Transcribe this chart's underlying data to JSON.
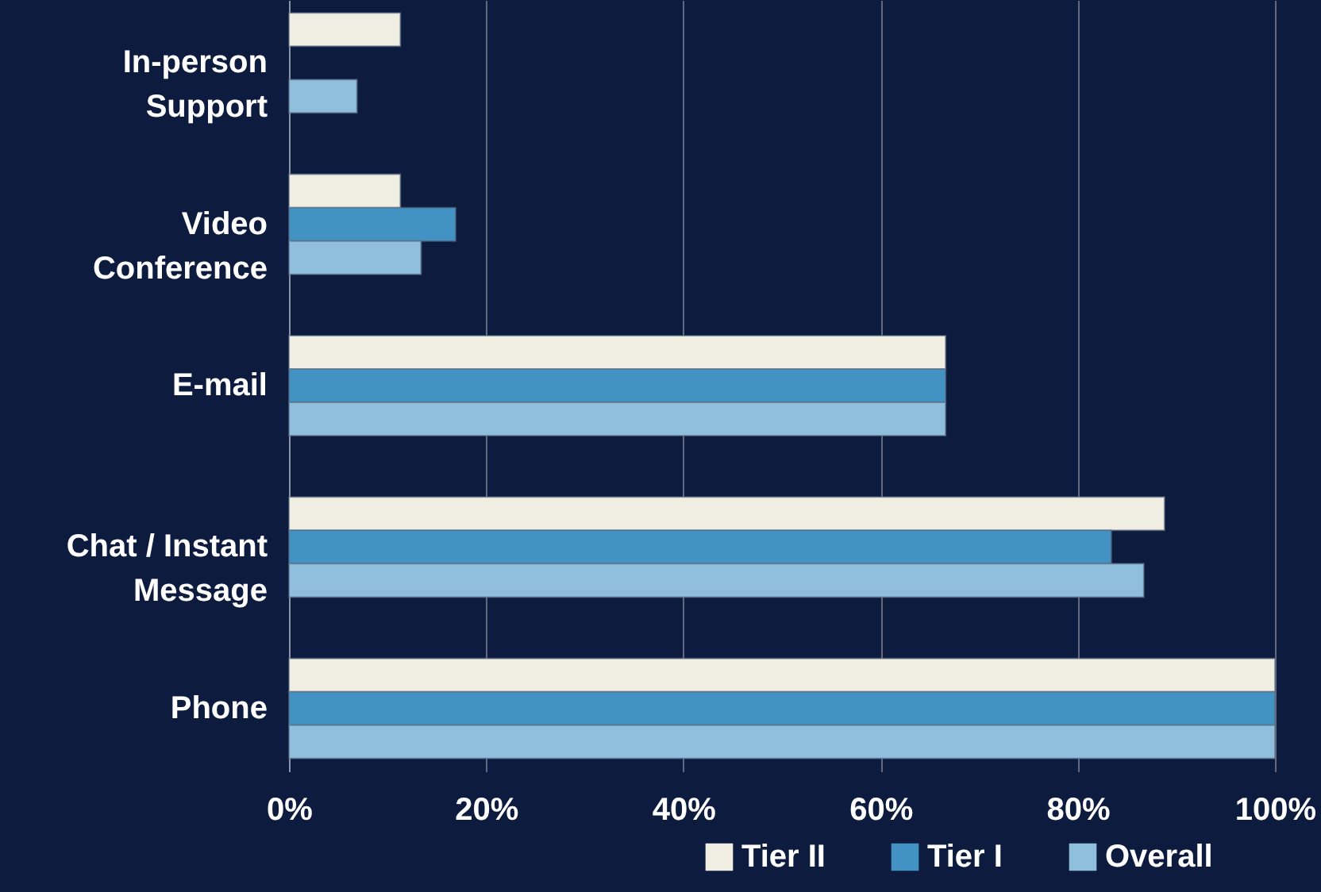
{
  "chart_data": {
    "type": "bar",
    "orientation": "horizontal",
    "categories": [
      "In-person Support",
      "Video Conference",
      "E-mail",
      "Chat / Instant Message",
      "Phone"
    ],
    "series": [
      {
        "name": "Tier II",
        "color": "#f0eee2",
        "values": [
          11.3,
          11.3,
          66.6,
          88.8,
          100
        ]
      },
      {
        "name": "Tier I",
        "color": "#4293c3",
        "values": [
          null,
          16.9,
          66.6,
          83.4,
          100
        ]
      },
      {
        "name": "Overall",
        "color": "#8fbfdc",
        "values": [
          6.9,
          13.4,
          66.6,
          86.7,
          100
        ]
      }
    ],
    "xlim": [
      0,
      100
    ],
    "xticks": [
      {
        "value": 0,
        "label": "0%"
      },
      {
        "value": 20,
        "label": "20%"
      },
      {
        "value": 40,
        "label": "40%"
      },
      {
        "value": 60,
        "label": "60%"
      },
      {
        "value": 80,
        "label": "80%"
      },
      {
        "value": 100,
        "label": "100%"
      }
    ],
    "grid": "x",
    "legend": "bottom right"
  }
}
